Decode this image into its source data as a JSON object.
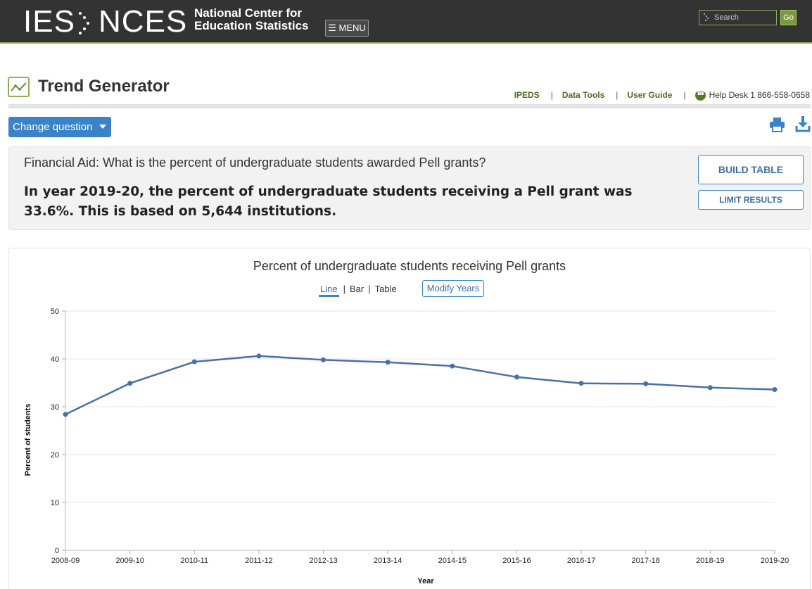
{
  "header": {
    "logo_ies": "IES",
    "logo_nces": "NCES",
    "logo_line1": "National Center for",
    "logo_line2": "Education Statistics",
    "menu_label": "☰ MENU",
    "search_placeholder": "Search",
    "go_label": "Go"
  },
  "page": {
    "title": "Trend Generator",
    "links": [
      "IPEDS",
      "Data Tools",
      "User Guide"
    ],
    "help_desk": "Help Desk 1 866-558-0658",
    "change_question_label": "Change question"
  },
  "panel": {
    "question": "Financial Aid: What is the percent of undergraduate students awarded Pell grants?",
    "answer": "In year 2019-20, the percent of undergraduate students receiving a Pell grant was 33.6%. This is based on 5,644 institutions.",
    "build_table_label": "BUILD TABLE",
    "limit_results_label": "LIMIT RESULTS"
  },
  "chart_controls": {
    "tabs": [
      "Line",
      "Bar",
      "Table"
    ],
    "active_tab": "Line",
    "modify_years_label": "Modify Years"
  },
  "colors": {
    "header_bg": "#333333",
    "accent_green": "#8fae5b",
    "button_blue": "#3a83c8",
    "line_color": "#4a6fa8"
  },
  "chart_data": {
    "type": "line",
    "title": "Percent of undergraduate students receiving Pell grants",
    "xlabel": "Year",
    "ylabel": "Percent of students",
    "ylim": [
      0,
      50
    ],
    "yticks": [
      0,
      10,
      20,
      30,
      40,
      50
    ],
    "grid": true,
    "categories": [
      "2008-09",
      "2009-10",
      "2010-11",
      "2011-12",
      "2012-13",
      "2013-14",
      "2014-15",
      "2015-16",
      "2016-17",
      "2017-18",
      "2018-19",
      "2019-20"
    ],
    "series": [
      {
        "values": [
          28.4,
          34.9,
          39.4,
          40.6,
          39.8,
          39.3,
          38.5,
          36.2,
          34.9,
          34.8,
          34.0,
          33.6
        ]
      }
    ]
  }
}
